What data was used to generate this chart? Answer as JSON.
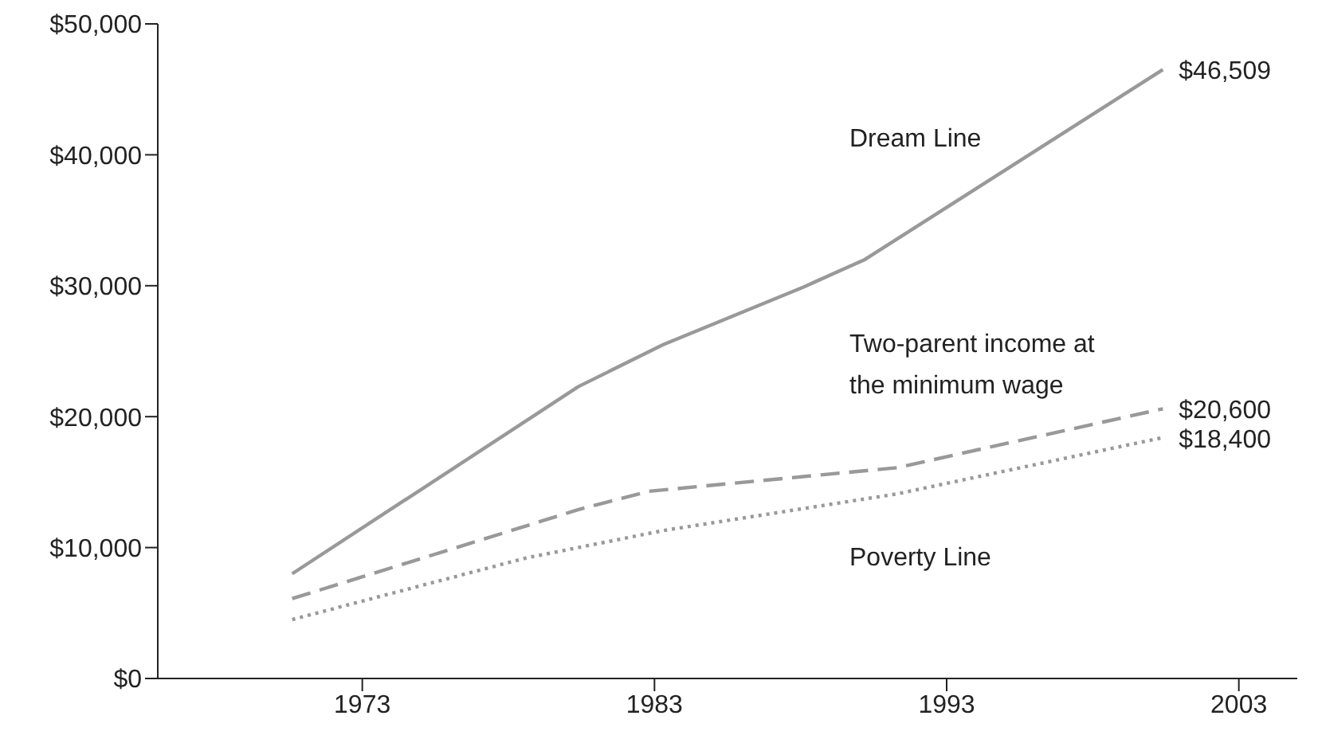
{
  "chart_data": {
    "type": "line",
    "xlim": [
      1966,
      2005
    ],
    "xticks": [
      1973,
      1983,
      1993,
      2003
    ],
    "ylim": [
      0,
      50000
    ],
    "yticks": [
      {
        "value": 0,
        "label": "$0"
      },
      {
        "value": 10000,
        "label": "$10,000"
      },
      {
        "value": 20000,
        "label": "$20,000"
      },
      {
        "value": 30000,
        "label": "$30,000"
      },
      {
        "value": 40000,
        "label": "$40,000"
      },
      {
        "value": 50000,
        "label": "$50,000"
      }
    ],
    "grid": false,
    "legend": false,
    "marker": "none",
    "series": [
      {
        "name": "Dream Line",
        "color": "#999999",
        "line_style": "solid",
        "x": [
          1970.6,
          1980.4,
          1983.3,
          1988.1,
          1989.6,
          1990.2,
          2000.4
        ],
        "values": [
          8000,
          22300,
          25500,
          29900,
          31400,
          32000,
          46509
        ],
        "value_labels": [
          null,
          null,
          null,
          null,
          null,
          null,
          "$46,509"
        ]
      },
      {
        "name": "Two-parent income at the minimum wage",
        "color": "#999999",
        "line_style": "dashed",
        "x": [
          1970.6,
          1980.4,
          1982.8,
          1991.3,
          2000.4
        ],
        "values": [
          6100,
          12900,
          14300,
          16100,
          20600
        ],
        "value_labels": [
          null,
          null,
          null,
          null,
          "$20,600"
        ]
      },
      {
        "name": "Poverty Line",
        "color": "#999999",
        "line_style": "dotted",
        "x": [
          1970.6,
          1978.6,
          1983.3,
          1991.3,
          2000.4
        ],
        "values": [
          4500,
          9200,
          11300,
          14100,
          18400
        ],
        "value_labels": [
          null,
          null,
          null,
          null,
          "$18,400"
        ]
      }
    ]
  }
}
